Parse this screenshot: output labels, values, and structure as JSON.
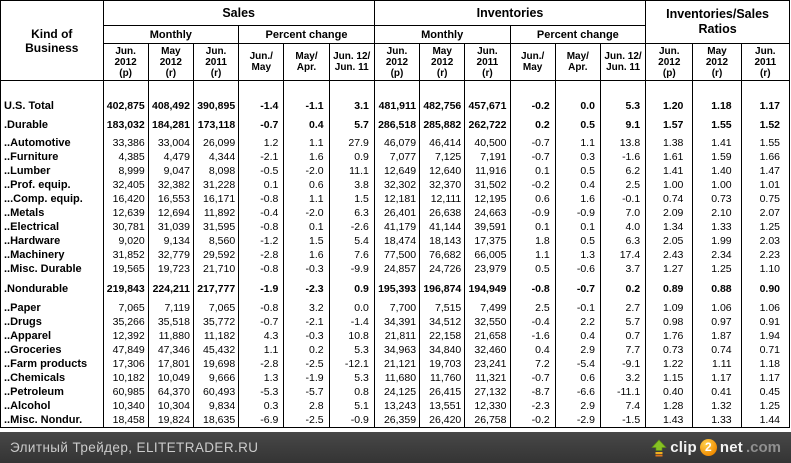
{
  "header": {
    "kind_line1": "Kind of",
    "kind_line2": "Business",
    "sales": "Sales",
    "inventories": "Inventories",
    "ratios_line1": "Inventories/Sales",
    "ratios_line2": "Ratios",
    "monthly": "Monthly",
    "percent_change": "Percent change",
    "columns": [
      [
        "Jun.",
        "2012",
        "(p)"
      ],
      [
        "May",
        "2012",
        "(r)"
      ],
      [
        "Jun.",
        "2011",
        "(r)"
      ],
      [
        "Jun./",
        "May"
      ],
      [
        "May/",
        "Apr."
      ],
      [
        "Jun. 12/",
        "Jun. 11"
      ],
      [
        "Jun.",
        "2012",
        "(p)"
      ],
      [
        "May",
        "2012",
        "(r)"
      ],
      [
        "Jun.",
        "2011",
        "(r)"
      ],
      [
        "Jun./",
        "May"
      ],
      [
        "May/",
        "Apr."
      ],
      [
        "Jun. 12/",
        "Jun. 11"
      ],
      [
        "Jun.",
        "2012",
        "(p)"
      ],
      [
        "May",
        "2012",
        "(r)"
      ],
      [
        "Jun.",
        "2011",
        "(r)"
      ]
    ]
  },
  "table": {
    "header_gap": 19,
    "rows": [
      {
        "label": "U.S. Total",
        "bold": true,
        "gap": 0,
        "values": [
          "402,875",
          "408,492",
          "390,895",
          "-1.4",
          "-1.1",
          "3.1",
          "481,911",
          "482,756",
          "457,671",
          "-0.2",
          "0.0",
          "5.3",
          "1.20",
          "1.18",
          "1.17"
        ]
      },
      {
        "label": ".Durable",
        "bold": true,
        "gap": 5,
        "values": [
          "183,032",
          "184,281",
          "173,118",
          "-0.7",
          "0.4",
          "5.7",
          "286,518",
          "285,882",
          "262,722",
          "0.2",
          "0.5",
          "9.1",
          "1.57",
          "1.55",
          "1.52"
        ]
      },
      {
        "label": "..Automotive",
        "bold": false,
        "gap": 4,
        "values": [
          "33,386",
          "33,004",
          "26,099",
          "1.2",
          "1.1",
          "27.9",
          "46,079",
          "46,414",
          "40,500",
          "-0.7",
          "1.1",
          "13.8",
          "1.38",
          "1.41",
          "1.55"
        ]
      },
      {
        "label": "..Furniture",
        "bold": false,
        "gap": 0,
        "values": [
          "4,385",
          "4,479",
          "4,344",
          "-2.1",
          "1.6",
          "0.9",
          "7,077",
          "7,125",
          "7,191",
          "-0.7",
          "0.3",
          "-1.6",
          "1.61",
          "1.59",
          "1.66"
        ]
      },
      {
        "label": "..Lumber",
        "bold": false,
        "gap": 0,
        "values": [
          "8,999",
          "9,047",
          "8,098",
          "-0.5",
          "-2.0",
          "11.1",
          "12,649",
          "12,640",
          "11,916",
          "0.1",
          "0.5",
          "6.2",
          "1.41",
          "1.40",
          "1.47"
        ]
      },
      {
        "label": "..Prof. equip.",
        "bold": false,
        "gap": 0,
        "values": [
          "32,405",
          "32,382",
          "31,228",
          "0.1",
          "0.6",
          "3.8",
          "32,302",
          "32,370",
          "31,502",
          "-0.2",
          "0.4",
          "2.5",
          "1.00",
          "1.00",
          "1.01"
        ]
      },
      {
        "label": "...Comp. equip.",
        "bold": false,
        "gap": 0,
        "values": [
          "16,420",
          "16,553",
          "16,171",
          "-0.8",
          "1.1",
          "1.5",
          "12,181",
          "12,111",
          "12,195",
          "0.6",
          "1.6",
          "-0.1",
          "0.74",
          "0.73",
          "0.75"
        ]
      },
      {
        "label": "..Metals",
        "bold": false,
        "gap": 0,
        "values": [
          "12,639",
          "12,694",
          "11,892",
          "-0.4",
          "-2.0",
          "6.3",
          "26,401",
          "26,638",
          "24,663",
          "-0.9",
          "-0.9",
          "7.0",
          "2.09",
          "2.10",
          "2.07"
        ]
      },
      {
        "label": "..Electrical",
        "bold": false,
        "gap": 0,
        "values": [
          "30,781",
          "31,039",
          "31,595",
          "-0.8",
          "0.1",
          "-2.6",
          "41,179",
          "41,144",
          "39,591",
          "0.1",
          "0.1",
          "4.0",
          "1.34",
          "1.33",
          "1.25"
        ]
      },
      {
        "label": "..Hardware",
        "bold": false,
        "gap": 0,
        "values": [
          "9,020",
          "9,134",
          "8,560",
          "-1.2",
          "1.5",
          "5.4",
          "18,474",
          "18,143",
          "17,375",
          "1.8",
          "0.5",
          "6.3",
          "2.05",
          "1.99",
          "2.03"
        ]
      },
      {
        "label": "..Machinery",
        "bold": false,
        "gap": 0,
        "values": [
          "31,852",
          "32,779",
          "29,592",
          "-2.8",
          "1.6",
          "7.6",
          "77,500",
          "76,682",
          "66,005",
          "1.1",
          "1.3",
          "17.4",
          "2.43",
          "2.34",
          "2.23"
        ]
      },
      {
        "label": "..Misc. Durable",
        "bold": false,
        "gap": 0,
        "values": [
          "19,565",
          "19,723",
          "21,710",
          "-0.8",
          "-0.3",
          "-9.9",
          "24,857",
          "24,726",
          "23,979",
          "0.5",
          "-0.6",
          "3.7",
          "1.27",
          "1.25",
          "1.10"
        ]
      },
      {
        "label": ".Nondurable",
        "bold": true,
        "gap": 6,
        "values": [
          "219,843",
          "224,211",
          "217,777",
          "-1.9",
          "-2.3",
          "0.9",
          "195,393",
          "196,874",
          "194,949",
          "-0.8",
          "-0.7",
          "0.2",
          "0.89",
          "0.88",
          "0.90"
        ]
      },
      {
        "label": "..Paper",
        "bold": false,
        "gap": 5,
        "values": [
          "7,065",
          "7,119",
          "7,065",
          "-0.8",
          "3.2",
          "0.0",
          "7,700",
          "7,515",
          "7,499",
          "2.5",
          "-0.1",
          "2.7",
          "1.09",
          "1.06",
          "1.06"
        ]
      },
      {
        "label": "..Drugs",
        "bold": false,
        "gap": 0,
        "values": [
          "35,266",
          "35,518",
          "35,772",
          "-0.7",
          "-2.1",
          "-1.4",
          "34,391",
          "34,512",
          "32,550",
          "-0.4",
          "2.2",
          "5.7",
          "0.98",
          "0.97",
          "0.91"
        ]
      },
      {
        "label": "..Apparel",
        "bold": false,
        "gap": 0,
        "values": [
          "12,392",
          "11,880",
          "11,182",
          "4.3",
          "-0.3",
          "10.8",
          "21,811",
          "22,158",
          "21,658",
          "-1.6",
          "0.4",
          "0.7",
          "1.76",
          "1.87",
          "1.94"
        ]
      },
      {
        "label": "..Groceries",
        "bold": false,
        "gap": 0,
        "values": [
          "47,849",
          "47,346",
          "45,432",
          "1.1",
          "0.2",
          "5.3",
          "34,963",
          "34,840",
          "32,460",
          "0.4",
          "2.9",
          "7.7",
          "0.73",
          "0.74",
          "0.71"
        ]
      },
      {
        "label": "..Farm products",
        "bold": false,
        "gap": 0,
        "values": [
          "17,306",
          "17,801",
          "19,698",
          "-2.8",
          "-2.5",
          "-12.1",
          "21,121",
          "19,703",
          "23,241",
          "7.2",
          "-5.4",
          "-9.1",
          "1.22",
          "1.11",
          "1.18"
        ]
      },
      {
        "label": "..Chemicals",
        "bold": false,
        "gap": 0,
        "values": [
          "10,182",
          "10,049",
          "9,666",
          "1.3",
          "-1.9",
          "5.3",
          "11,680",
          "11,760",
          "11,321",
          "-0.7",
          "0.6",
          "3.2",
          "1.15",
          "1.17",
          "1.17"
        ]
      },
      {
        "label": "..Petroleum",
        "bold": false,
        "gap": 0,
        "values": [
          "60,985",
          "64,370",
          "60,493",
          "-5.3",
          "-5.7",
          "0.8",
          "24,125",
          "26,415",
          "27,132",
          "-8.7",
          "-6.6",
          "-11.1",
          "0.40",
          "0.41",
          "0.45"
        ]
      },
      {
        "label": "..Alcohol",
        "bold": false,
        "gap": 0,
        "values": [
          "10,340",
          "10,304",
          "9,834",
          "0.3",
          "2.8",
          "5.1",
          "13,243",
          "13,551",
          "12,330",
          "-2.3",
          "2.9",
          "7.4",
          "1.28",
          "1.32",
          "1.25"
        ]
      },
      {
        "label": "..Misc. Nondur.",
        "bold": false,
        "gap": 0,
        "values": [
          "18,458",
          "19,824",
          "18,635",
          "-6.9",
          "-2.5",
          "-0.9",
          "26,359",
          "26,420",
          "26,758",
          "-0.2",
          "-2.9",
          "-1.5",
          "1.43",
          "1.33",
          "1.44"
        ]
      }
    ]
  },
  "footer": {
    "left": "Элитный Трейдер, ELITETRADER.RU",
    "logo": {
      "clip": "clip",
      "two": "2",
      "net": "net",
      "com": ".com"
    }
  },
  "colors": {
    "border": "#000000",
    "footer_bg": "#3c3c3c",
    "footer_text": "#cbcbcb",
    "logo_green": "#86c123",
    "logo_orange": "#f08a00",
    "logo_com_gray": "#8f8f8f"
  }
}
